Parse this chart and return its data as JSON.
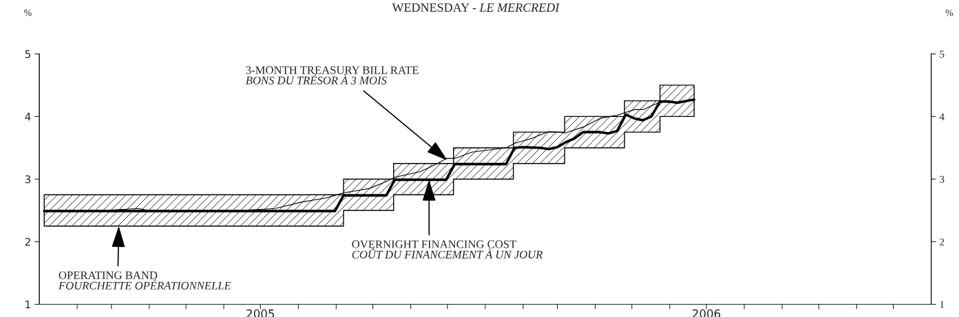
{
  "chart_data": {
    "type": "line",
    "title": "WEDNESDAY - LE MERCREDI",
    "ylabel": "%",
    "y2label": "%",
    "series": [
      {
        "type": "step",
        "color": "#000000",
        "x": [
          "2005-01-05",
          "2005-09-07",
          "2005-10-18",
          "2005-12-06",
          "2006-01-24",
          "2006-03-07",
          "2006-04-25",
          "2006-05-24",
          "2006-06-21"
        ],
        "values": [
          null,
          null,
          null,
          null,
          null,
          null,
          null,
          null,
          null
        ],
        "lower": [
          2.25,
          2.5,
          2.75,
          3.0,
          3.25,
          3.5,
          3.75,
          4.0,
          4.0
        ],
        "upper": [
          2.75,
          3.0,
          3.25,
          3.5,
          3.75,
          4.0,
          4.25,
          4.5,
          4.5
        ]
      },
      {
        "color": "#000000",
        "x": [
          "2005-01-05",
          "2005-01-26",
          "2005-02-23",
          "2005-03-23",
          "2005-04-06",
          "2005-05-18",
          "2005-06-15",
          "2005-07-13",
          "2005-08-03",
          "2005-08-24",
          "2005-08-31",
          "2005-09-07",
          "2005-09-28",
          "2005-10-12",
          "2005-10-19",
          "2005-11-09",
          "2005-11-23",
          "2005-11-30",
          "2005-12-07",
          "2005-12-21",
          "2006-01-18",
          "2006-01-25",
          "2006-02-08",
          "2006-02-22",
          "2006-03-08",
          "2006-03-22",
          "2006-04-05",
          "2006-04-19",
          "2006-05-03",
          "2006-05-10",
          "2006-05-24",
          "2006-06-07",
          "2006-06-14",
          "2006-06-21"
        ],
        "values": [
          2.5,
          2.48,
          2.5,
          2.53,
          2.48,
          2.49,
          2.5,
          2.53,
          2.63,
          2.7,
          2.74,
          2.78,
          2.85,
          2.96,
          3.03,
          3.12,
          3.25,
          3.33,
          3.33,
          3.43,
          3.5,
          3.57,
          3.65,
          3.76,
          3.74,
          3.83,
          3.97,
          4.02,
          4.11,
          4.11,
          4.23,
          4.22,
          4.25,
          4.27
        ]
      },
      {
        "color": "#000000",
        "x": [
          "2005-01-05",
          "2005-08-31",
          "2005-09-07",
          "2005-10-12",
          "2005-10-19",
          "2005-11-30",
          "2005-12-07",
          "2006-01-18",
          "2006-01-25",
          "2006-02-01",
          "2006-02-15",
          "2006-02-22",
          "2006-03-01",
          "2006-03-08",
          "2006-03-15",
          "2006-03-22",
          "2006-04-05",
          "2006-04-12",
          "2006-04-19",
          "2006-04-26",
          "2006-05-03",
          "2006-05-10",
          "2006-05-17",
          "2006-05-24",
          "2006-05-31",
          "2006-06-07",
          "2006-06-21"
        ],
        "values": [
          2.49,
          2.49,
          2.74,
          2.74,
          2.99,
          2.99,
          3.24,
          3.24,
          3.5,
          3.51,
          3.5,
          3.48,
          3.51,
          3.59,
          3.65,
          3.75,
          3.75,
          3.73,
          3.77,
          4.03,
          3.97,
          3.94,
          4.0,
          4.24,
          4.24,
          4.22,
          4.27
        ]
      }
    ],
    "annotations": [
      {
        "text": "3-MONTH TREASURY BILL RATE\nBONS DU TRÉSOR À 3 MOIS",
        "x": "2005-12-01",
        "y": 3.3
      },
      {
        "text": "OVERNIGHT FINANCING COST\nCOÛT DU FINANCEMENT À UN JOUR",
        "x": "2005-11-16",
        "y": 2.99
      },
      {
        "text": "OPERATING BAND\nFOURCHETTE OPÉRATIONNELLE",
        "x": "2005-03-07",
        "y": 2.25
      }
    ],
    "xlim": [
      "2005-01-01",
      "2007-01-01"
    ],
    "xticks": [
      {
        "value": "2005-02",
        "label": null
      },
      {
        "value": "2005-03",
        "label": null
      },
      {
        "value": "2005-04",
        "label": null
      },
      {
        "value": "2005-05",
        "label": null
      },
      {
        "value": "2005-06",
        "label": null
      },
      {
        "value": "2005-07",
        "label": "2005"
      },
      {
        "value": "2005-08",
        "label": null
      },
      {
        "value": "2005-09",
        "label": null
      },
      {
        "value": "2005-10",
        "label": null
      },
      {
        "value": "2005-11",
        "label": null
      },
      {
        "value": "2005-12",
        "label": null
      },
      {
        "value": "2006-01",
        "label": null
      },
      {
        "value": "2006-02",
        "label": null
      },
      {
        "value": "2006-03",
        "label": null
      },
      {
        "value": "2006-04",
        "label": null
      },
      {
        "value": "2006-05",
        "label": null
      },
      {
        "value": "2006-06",
        "label": null
      },
      {
        "value": "2006-07",
        "label": "2006"
      },
      {
        "value": "2006-08",
        "label": null
      },
      {
        "value": "2006-09",
        "label": null
      },
      {
        "value": "2006-10",
        "label": null
      },
      {
        "value": "2006-11",
        "label": null
      },
      {
        "value": "2006-12",
        "label": null
      }
    ],
    "ylim": [
      1,
      5
    ],
    "yticks": [
      1,
      2,
      3,
      4,
      5
    ],
    "y2lim": [
      1,
      5
    ],
    "y2ticks": [
      1,
      2,
      3,
      4,
      5
    ],
    "grid": false,
    "legend": false
  }
}
